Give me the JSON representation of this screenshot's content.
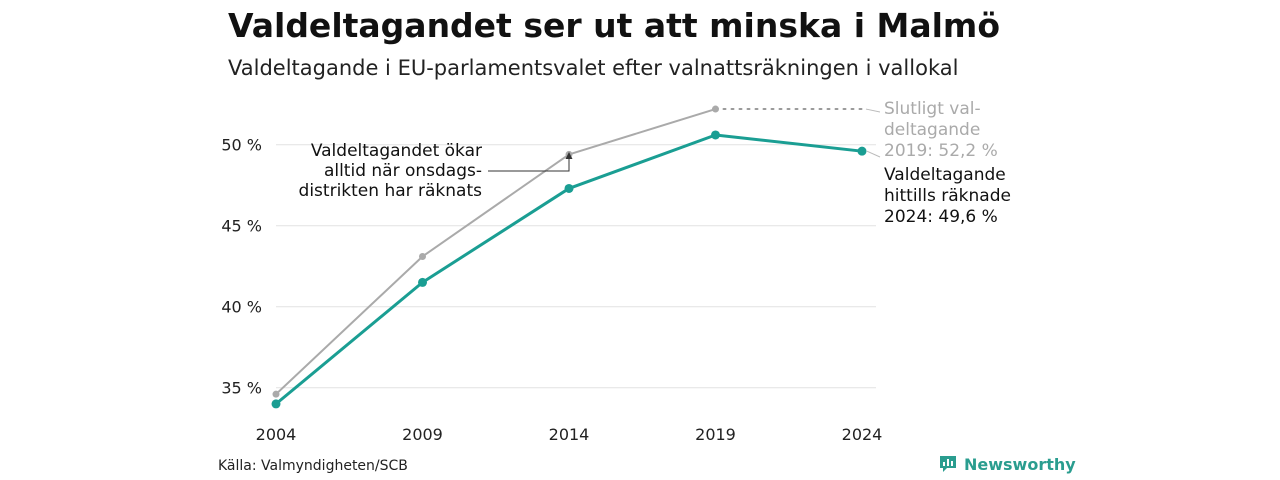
{
  "header": {
    "title": "Valdeltagandet ser ut att minska i Malmö",
    "subtitle": "Valdeltagande i EU-parlamentsvalet efter valnattsräkningen i vallokal"
  },
  "footer": {
    "source": "Källa: Valmyndigheten/SCB",
    "brand": "Newsworthy",
    "brand_icon": "newsworthy-logo-icon"
  },
  "chart_data": {
    "type": "line",
    "title": "Valdeltagandet ser ut att minska i Malmö",
    "subtitle": "Valdeltagande i EU-parlamentsvalet efter valnattsräkningen i vallokal",
    "xlabel": "",
    "ylabel": "",
    "x": [
      2004,
      2009,
      2014,
      2019,
      2024
    ],
    "x_tick_labels": [
      "2004",
      "2009",
      "2014",
      "2019",
      "2024"
    ],
    "y_ticks": [
      35,
      40,
      45,
      50
    ],
    "y_tick_labels": [
      "35 %",
      "40 %",
      "45 %",
      "50 %"
    ],
    "ylim": [
      33.5,
      53.5
    ],
    "grid": true,
    "series": [
      {
        "key": "final",
        "values": [
          34.6,
          43.1,
          49.4,
          52.2,
          null
        ],
        "color": "#aaaaaa"
      },
      {
        "key": "counted",
        "values": [
          34.0,
          41.5,
          47.3,
          50.6,
          49.6
        ],
        "color": "#1a9e93"
      }
    ],
    "annotations": {
      "final_label": [
        "Slutligt val-",
        "deltagande",
        "2019: 52,2 %"
      ],
      "counted_label": [
        "Valdeltagande",
        "hittills räknade",
        "2024: 49,6 %"
      ],
      "note": [
        "Valdeltagandet ökar",
        "alltid när onsdags-",
        "distrikten har räknats"
      ]
    }
  }
}
